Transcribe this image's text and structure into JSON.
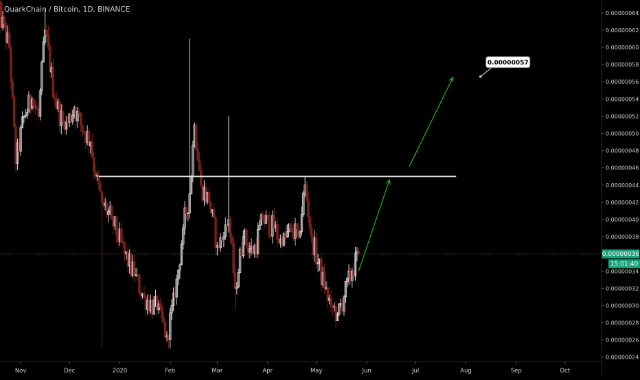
{
  "header": {
    "title": "QuarkChain / Bitcoin, 1D, BINANCE"
  },
  "colors": {
    "background": "#000000",
    "up": "#d9d9d9",
    "down": "#7a1f1f",
    "text": "#cfcfcf",
    "axis_line": "#2a2a2a",
    "price_line": "#5a5a5a",
    "current_price_bg": "#1aa179",
    "resistance": "#e6e6e6",
    "projection": "#1db81d",
    "callout_bg": "#ffffff",
    "callout_text": "#000000"
  },
  "chart_data": {
    "type": "candlestick",
    "title": "QuarkChain / Bitcoin, 1D, BINANCE",
    "xlabel": "",
    "ylabel": "",
    "ylim": [
      2.35e-07,
      6.55e-07
    ],
    "y_ticks": [
      "0.00000024",
      "0.00000026",
      "0.00000028",
      "0.00000030",
      "0.00000032",
      "0.00000034",
      "0.00000036",
      "0.00000038",
      "0.00000040",
      "0.00000042",
      "0.00000044",
      "0.00000046",
      "0.00000048",
      "0.00000050",
      "0.00000052",
      "0.00000054",
      "0.00000056",
      "0.00000058",
      "0.00000060",
      "0.00000062",
      "0.00000064"
    ],
    "y_tick_values": [
      2.4e-07,
      2.6e-07,
      2.8e-07,
      3e-07,
      3.2e-07,
      3.4e-07,
      3.6e-07,
      3.8e-07,
      4e-07,
      4.2e-07,
      4.4e-07,
      4.6e-07,
      4.8e-07,
      5e-07,
      5.2e-07,
      5.4e-07,
      5.6e-07,
      5.8e-07,
      6e-07,
      6.2e-07,
      6.4e-07
    ],
    "x_range": [
      "2019-10-18",
      "2020-10-18"
    ],
    "x_ticks": [
      {
        "label": "Nov",
        "date": "2019-11-01"
      },
      {
        "label": "Dec",
        "date": "2019-12-01"
      },
      {
        "label": "2020",
        "date": "2020-01-01"
      },
      {
        "label": "Feb",
        "date": "2020-02-01"
      },
      {
        "label": "Mar",
        "date": "2020-03-01"
      },
      {
        "label": "Apr",
        "date": "2020-04-01"
      },
      {
        "label": "May",
        "date": "2020-05-01"
      },
      {
        "label": "Jun",
        "date": "2020-06-01"
      },
      {
        "label": "Jul",
        "date": "2020-07-01"
      },
      {
        "label": "Aug",
        "date": "2020-08-01"
      },
      {
        "label": "Sep",
        "date": "2020-09-01"
      },
      {
        "label": "Oct",
        "date": "2020-10-01"
      }
    ],
    "anchors": [
      {
        "date": "2019-10-18",
        "close": 6.45e-07,
        "high": 6.52e-07
      },
      {
        "date": "2019-10-25",
        "close": 6e-07
      },
      {
        "date": "2019-10-29",
        "close": 4.65e-07,
        "low": 4.55e-07
      },
      {
        "date": "2019-11-03",
        "close": 5.2e-07
      },
      {
        "date": "2019-11-08",
        "close": 5.4e-07
      },
      {
        "date": "2019-11-12",
        "close": 5.2e-07
      },
      {
        "date": "2019-11-16",
        "close": 6.2e-07,
        "high": 6.45e-07
      },
      {
        "date": "2019-11-22",
        "close": 5.4e-07
      },
      {
        "date": "2019-11-28",
        "close": 5.05e-07
      },
      {
        "date": "2019-12-04",
        "close": 5.3e-07
      },
      {
        "date": "2019-12-08",
        "close": 5.1e-07
      },
      {
        "date": "2019-12-14",
        "close": 4.9e-07
      },
      {
        "date": "2019-12-17",
        "close": 4.5e-07
      },
      {
        "date": "2019-12-21",
        "close": 4.2e-07,
        "low": 2.5e-07
      },
      {
        "date": "2019-12-27",
        "close": 4e-07
      },
      {
        "date": "2020-01-04",
        "close": 3.6e-07
      },
      {
        "date": "2020-01-10",
        "close": 3.35e-07
      },
      {
        "date": "2020-01-16",
        "close": 3.1e-07
      },
      {
        "date": "2020-01-24",
        "close": 2.95e-07
      },
      {
        "date": "2020-01-30",
        "close": 2.65e-07,
        "low": 2.58e-07
      },
      {
        "date": "2020-02-04",
        "close": 3.1e-07
      },
      {
        "date": "2020-02-09",
        "close": 3.9e-07
      },
      {
        "date": "2020-02-13",
        "close": 4.3e-07,
        "high": 6.1e-07
      },
      {
        "date": "2020-02-16",
        "close": 5.1e-07
      },
      {
        "date": "2020-02-20",
        "close": 4.4e-07
      },
      {
        "date": "2020-02-25",
        "close": 4.2e-07
      },
      {
        "date": "2020-03-01",
        "close": 3.7e-07
      },
      {
        "date": "2020-03-05",
        "close": 3.8e-07
      },
      {
        "date": "2020-03-08",
        "close": 4e-07,
        "high": 5.2e-07
      },
      {
        "date": "2020-03-12",
        "close": 3.2e-07,
        "low": 2.95e-07
      },
      {
        "date": "2020-03-17",
        "close": 3.8e-07
      },
      {
        "date": "2020-03-23",
        "close": 3.6e-07
      },
      {
        "date": "2020-03-29",
        "close": 4e-07
      },
      {
        "date": "2020-04-05",
        "close": 3.9e-07
      },
      {
        "date": "2020-04-10",
        "close": 3.7e-07
      },
      {
        "date": "2020-04-15",
        "close": 3.9e-07
      },
      {
        "date": "2020-04-20",
        "close": 3.8e-07
      },
      {
        "date": "2020-04-24",
        "close": 4.4e-07,
        "high": 4.5e-07
      },
      {
        "date": "2020-04-28",
        "close": 3.8e-07
      },
      {
        "date": "2020-05-02",
        "close": 3.5e-07
      },
      {
        "date": "2020-05-06",
        "close": 3.2e-07
      },
      {
        "date": "2020-05-10",
        "close": 3e-07
      },
      {
        "date": "2020-05-14",
        "close": 2.9e-07,
        "low": 2.82e-07
      },
      {
        "date": "2020-05-18",
        "close": 3.1e-07
      },
      {
        "date": "2020-05-23",
        "close": 3.4e-07
      },
      {
        "date": "2020-05-27",
        "close": 3.6e-07
      }
    ],
    "resistance": {
      "y": 4.5e-07,
      "x_start": "2019-12-19",
      "x_end": "2020-07-26"
    },
    "projections": [
      {
        "from": {
          "date": "2020-05-27",
          "y": 3.4e-07
        },
        "to": {
          "date": "2020-06-15",
          "y": 4.46e-07
        }
      },
      {
        "from": {
          "date": "2020-06-27",
          "y": 4.61e-07
        },
        "to": {
          "date": "2020-07-24",
          "y": 5.65e-07
        }
      }
    ],
    "target": {
      "label": "0.00000057",
      "date": "2020-08-10",
      "y": 5.66e-07
    },
    "current_price": {
      "value": 3.6e-07,
      "label": "0.00000036",
      "countdown": "15:01:40"
    },
    "legend": "none",
    "grid": false
  }
}
